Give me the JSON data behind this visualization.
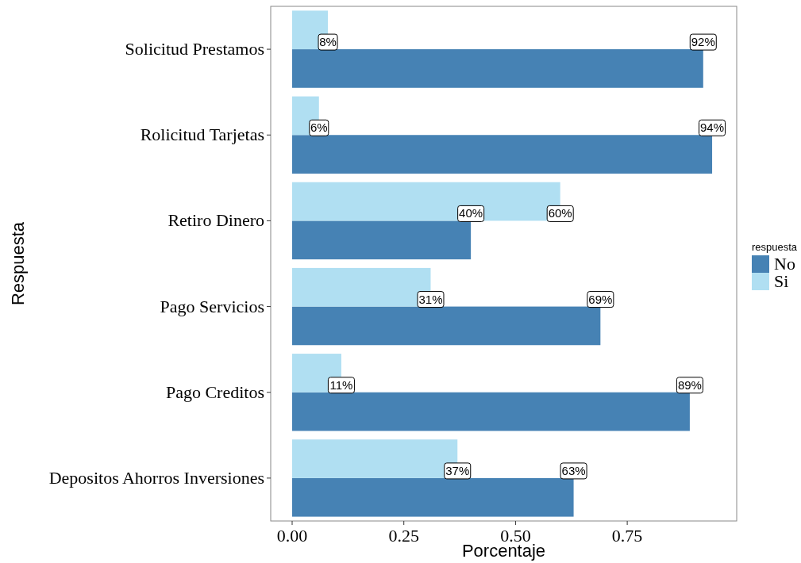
{
  "chart_data": {
    "type": "bar",
    "orientation": "horizontal",
    "xlabel": "Porcentaje",
    "ylabel": "Respuesta",
    "legend_title": "respuesta",
    "legend": "right",
    "categories": [
      "Solicitud Prestamos",
      "Rolicitud Tarjetas",
      "Retiro Dinero",
      "Pago Servicios",
      "Pago Creditos",
      "Depositos Ahorros Inversiones"
    ],
    "xlim": [
      -0.048,
      0.995
    ],
    "xticks": [
      {
        "value": 0,
        "label": "0.00"
      },
      {
        "value": 0.25,
        "label": "0.25"
      },
      {
        "value": 0.5,
        "label": "0.50"
      },
      {
        "value": 0.75,
        "label": "0.75"
      }
    ],
    "series": [
      {
        "name": "No",
        "color": "#4682b4",
        "values": [
          0.92,
          0.94,
          0.4,
          0.69,
          0.89,
          0.63
        ],
        "value_labels": [
          "92%",
          "94%",
          "40%",
          "69%",
          "89%",
          "63%"
        ]
      },
      {
        "name": "Si",
        "color": "#b0dff2",
        "values": [
          0.08,
          0.06,
          0.6,
          0.31,
          0.11,
          0.37
        ],
        "value_labels": [
          "8%",
          "6%",
          "60%",
          "31%",
          "11%",
          "37%"
        ]
      }
    ]
  }
}
